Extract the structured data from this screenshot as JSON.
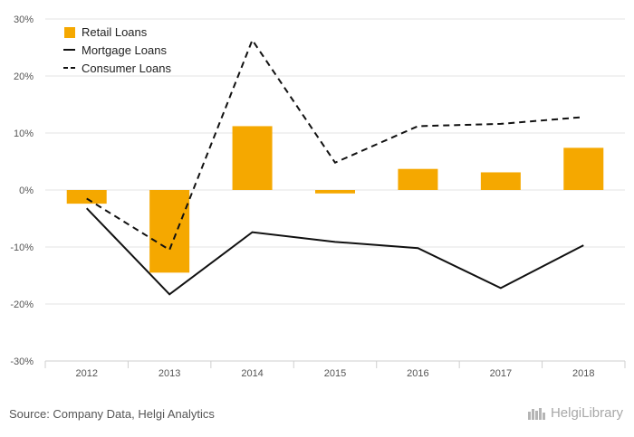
{
  "chart_data": {
    "type": "bar",
    "categories": [
      "2012",
      "2013",
      "2014",
      "2015",
      "2016",
      "2017",
      "2018"
    ],
    "series": [
      {
        "name": "Retail Loans",
        "kind": "bar",
        "color": "#f5a800",
        "values": [
          -2.4,
          -14.5,
          11.2,
          -0.6,
          3.7,
          3.1,
          7.4
        ]
      },
      {
        "name": "Mortgage Loans",
        "kind": "line",
        "style": "solid",
        "color": "#111111",
        "values": [
          -3.2,
          -18.3,
          -7.4,
          -9.1,
          -10.2,
          -17.2,
          -9.7
        ]
      },
      {
        "name": "Consumer Loans",
        "kind": "line",
        "style": "dashed",
        "color": "#111111",
        "values": [
          -1.5,
          -10.5,
          26.3,
          4.8,
          11.2,
          11.6,
          12.8
        ]
      }
    ],
    "yticks": [
      "30%",
      "20%",
      "10%",
      "0%",
      "-10%",
      "-20%",
      "-30%"
    ],
    "ylim": [
      -30,
      30
    ],
    "grid": true,
    "legend_position": "top-left",
    "title": "",
    "xlabel": "",
    "ylabel": ""
  },
  "footer": {
    "source": "Source: Company Data, Helgi Analytics",
    "brand": "HelgiLibrary"
  }
}
